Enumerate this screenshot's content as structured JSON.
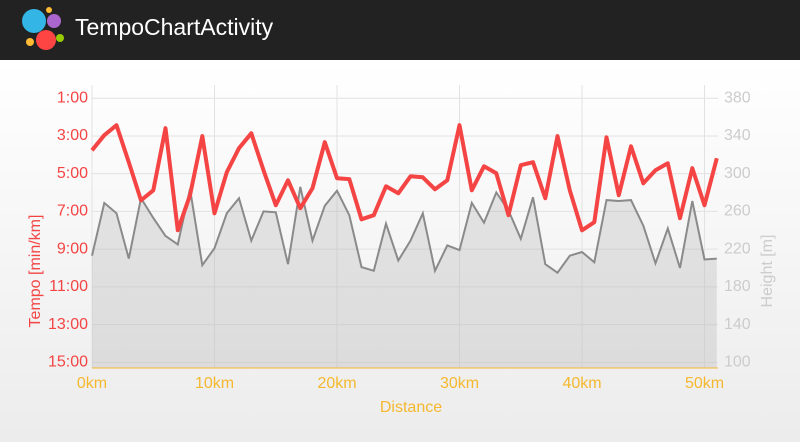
{
  "app_bar": {
    "title": "TempoChartActivity"
  },
  "chart_data": {
    "type": "line",
    "x_label": "Distance",
    "y_label": "Tempo [min/km]",
    "y2_label": "Height [m]",
    "x": [
      0,
      1,
      2,
      3,
      4,
      5,
      6,
      7,
      8,
      9,
      10,
      11,
      12,
      13,
      14,
      15,
      16,
      17,
      18,
      19,
      20,
      21,
      22,
      23,
      24,
      25,
      26,
      27,
      28,
      29,
      30,
      31,
      32,
      33,
      34,
      35,
      36,
      37,
      38,
      39,
      40,
      41,
      42,
      43,
      44,
      45,
      46,
      47,
      48,
      49,
      50,
      51
    ],
    "series": [
      {
        "name": "Tempo",
        "color": "#f44444",
        "axis": "y",
        "values": [
          3.76,
          2.96,
          2.43,
          4.39,
          6.41,
          5.88,
          2.59,
          8.0,
          6.14,
          3.01,
          7.1,
          4.92,
          3.65,
          2.86,
          4.82,
          6.67,
          5.35,
          6.83,
          5.77,
          3.33,
          5.24,
          5.29,
          7.42,
          7.2,
          5.67,
          6.04,
          5.14,
          5.19,
          5.83,
          5.35,
          2.43,
          5.88,
          4.61,
          4.98,
          7.2,
          4.55,
          4.39,
          6.3,
          3.01,
          5.88,
          8.0,
          7.57,
          3.07,
          6.14,
          3.55,
          5.51,
          4.82,
          4.45,
          7.36,
          4.71,
          6.67,
          4.18
        ]
      },
      {
        "name": "Height",
        "color": "#8a8a8a",
        "axis": "y2",
        "values": [
          213,
          269,
          258,
          210,
          274,
          253,
          234,
          225,
          284,
          203,
          221,
          258,
          274,
          229,
          260,
          259,
          204,
          286,
          229,
          266,
          282,
          256,
          201,
          197,
          247,
          208,
          229,
          258,
          197,
          224,
          219,
          269,
          248,
          280,
          261,
          231,
          275,
          204,
          195,
          213,
          217,
          206,
          272,
          271,
          272,
          245,
          205,
          242,
          200,
          271,
          209,
          210
        ]
      }
    ],
    "xlim": [
      0,
      51.1
    ],
    "xticks": [
      {
        "value": 0,
        "label": "0km"
      },
      {
        "value": 10,
        "label": "10km"
      },
      {
        "value": 20,
        "label": "20km"
      },
      {
        "value": 30,
        "label": "30km"
      },
      {
        "value": 40,
        "label": "40km"
      },
      {
        "value": 50,
        "label": "50km"
      }
    ],
    "ylim": [
      15.3,
      0.3
    ],
    "yticks": [
      {
        "value": 1,
        "label": "1:00"
      },
      {
        "value": 3,
        "label": "3:00"
      },
      {
        "value": 5,
        "label": "5:00"
      },
      {
        "value": 7,
        "label": "7:00"
      },
      {
        "value": 9,
        "label": "9:00"
      },
      {
        "value": 11,
        "label": "11:00"
      },
      {
        "value": 13,
        "label": "13:00"
      },
      {
        "value": 15,
        "label": "15:00"
      }
    ],
    "y2lim": [
      94,
      394
    ],
    "y2ticks": [
      100,
      140,
      180,
      220,
      260,
      300,
      340,
      380
    ],
    "grid": true
  }
}
